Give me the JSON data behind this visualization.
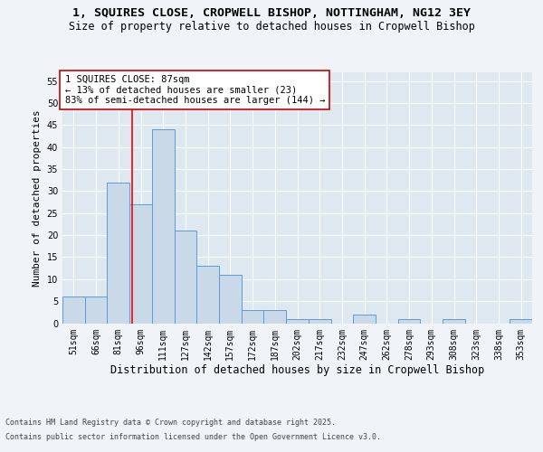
{
  "title_line1": "1, SQUIRES CLOSE, CROPWELL BISHOP, NOTTINGHAM, NG12 3EY",
  "title_line2": "Size of property relative to detached houses in Cropwell Bishop",
  "xlabel": "Distribution of detached houses by size in Cropwell Bishop",
  "ylabel": "Number of detached properties",
  "categories": [
    "51sqm",
    "66sqm",
    "81sqm",
    "96sqm",
    "111sqm",
    "127sqm",
    "142sqm",
    "157sqm",
    "172sqm",
    "187sqm",
    "202sqm",
    "217sqm",
    "232sqm",
    "247sqm",
    "262sqm",
    "278sqm",
    "293sqm",
    "308sqm",
    "323sqm",
    "338sqm",
    "353sqm"
  ],
  "values": [
    6,
    6,
    32,
    27,
    44,
    21,
    13,
    11,
    3,
    3,
    1,
    1,
    0,
    2,
    0,
    1,
    0,
    1,
    0,
    0,
    1
  ],
  "bar_color": "#c9d9e8",
  "bar_edge_color": "#5b9bd5",
  "red_line_x": 2.6,
  "annotation_text": "1 SQUIRES CLOSE: 87sqm\n← 13% of detached houses are smaller (23)\n83% of semi-detached houses are larger (144) →",
  "annotation_box_color": "#ffffff",
  "annotation_box_edge": "#cc0000",
  "ylim": [
    0,
    57
  ],
  "yticks": [
    0,
    5,
    10,
    15,
    20,
    25,
    30,
    35,
    40,
    45,
    50,
    55
  ],
  "footer_line1": "Contains HM Land Registry data © Crown copyright and database right 2025.",
  "footer_line2": "Contains public sector information licensed under the Open Government Licence v3.0.",
  "background_color": "#dde8f0",
  "grid_color": "#ffffff",
  "title_fontsize": 9.5,
  "subtitle_fontsize": 8.5,
  "axis_label_fontsize": 8,
  "tick_fontsize": 7,
  "annotation_fontsize": 7.5,
  "footer_fontsize": 6
}
